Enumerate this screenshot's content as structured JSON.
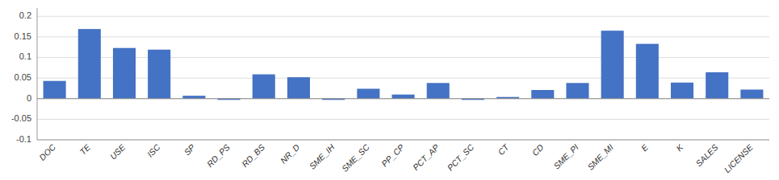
{
  "chart_data": {
    "type": "bar",
    "categories": [
      "DOC",
      "TE",
      "USE",
      "ISC",
      "SP",
      "RD_PS",
      "RD_BS",
      "NR_D",
      "SME_IH",
      "SME_SC",
      "PP_CP",
      "PCT_AP",
      "PCT_SC",
      "CT",
      "CD",
      "SME_PI",
      "SME_MI",
      "E",
      "K",
      "SALES",
      "LICENSE"
    ],
    "values": [
      0.043,
      0.169,
      0.123,
      0.119,
      0.007,
      -0.003,
      0.059,
      0.052,
      -0.003,
      0.024,
      0.01,
      0.038,
      -0.003,
      0.004,
      0.021,
      0.038,
      0.165,
      0.133,
      0.039,
      0.064,
      0.022
    ],
    "color": "#4472C4",
    "ylim": [
      -0.1,
      0.22
    ],
    "yticks": [
      -0.1,
      -0.05,
      0,
      0.05,
      0.1,
      0.15,
      0.2
    ],
    "grid": true
  }
}
